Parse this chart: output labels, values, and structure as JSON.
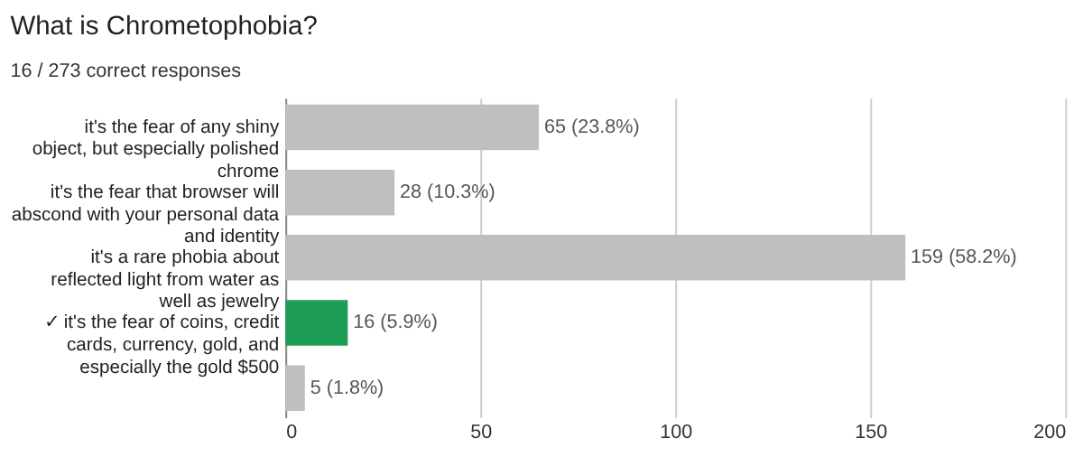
{
  "chart_data": {
    "type": "bar",
    "orientation": "horizontal",
    "title": "What is Chrometophobia?",
    "subtitle": "16 / 273 correct responses",
    "categories": [
      "it's the fear of any shiny object, but especially polished chrome",
      "it's the fear that browser will abscond with your personal data and identity",
      "it's a rare phobia about reflected light from water as well as jewelry",
      "✓ it's the fear of coins, credit cards, currency, gold, and especially the gold $500",
      null
    ],
    "values": [
      65,
      28,
      159,
      16,
      5
    ],
    "colors": [
      "#bfbfbf",
      "#bfbfbf",
      "#bfbfbf",
      "#1e9d57",
      "#bfbfbf"
    ],
    "value_labels": [
      "65 (23.8%)",
      "28 (10.3%)",
      "159 (58.2%)",
      "16 (5.9%)",
      "5 (1.8%)"
    ],
    "xlim": [
      0,
      200
    ],
    "xticks": [
      0,
      50,
      100,
      150,
      200
    ],
    "grid": "x"
  }
}
